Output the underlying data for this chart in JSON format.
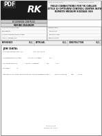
{
  "title_lines": [
    "FIELD CONNECTIONS FOR YK CHILLER",
    "(STYLE G) OPTIVIEW CONTROL CENTER WITH",
    "REMOTE MEDIUM VOLTAGE SSS"
  ],
  "doc_num_left": "150.72-PW2 (805)",
  "doc_num_right": "FORM 150.72-PW2",
  "issue_date_label": "ISSUE DATE",
  "issue_date_val": "MARCH 30, 2011",
  "company": "BY JOHNSON CONTROLS",
  "logo_text": "RK",
  "pdf_text": "PDF",
  "wiring_diagram_label": "WIRING DIAGRAM",
  "header_left_labels": [
    "CONTRACTOR NAME",
    "ENGINEER",
    "SALES CONTRACTOR NAME",
    "LOCAL ORDER NO."
  ],
  "header_right_labels": [
    "PURCHASER",
    "JOB NAME",
    "JOB LOCATED",
    "REQUISITION"
  ],
  "ref_label": "REFERENCE",
  "approval_label": "APPROVAL",
  "construction_label": "CONSTRUCTION",
  "date_label": "DATE",
  "job_data_label": "JOB DATA:",
  "job_data_lines": [
    "CHILLER MODEL NO. / SL                    NO. OF UNITS",
    "COMPRESSOR MOTOR              VOLTS / AMPERE               Hz",
    "OIL PUMP MOTOR                VOLTS / AMPERE               Hz              FLA",
    "NV MDD              #",
    "OPTIONAL FACTORY INSTALLED OIL PUMP POWER SUPPLY         VOLTS / PHASE         Hz         AMPS"
  ],
  "bg_color": "#ffffff",
  "text_color": "#333333",
  "logo_bg": "#1a1a1a",
  "header_grey": "#cccccc",
  "row_bg": "#e8e8e8"
}
